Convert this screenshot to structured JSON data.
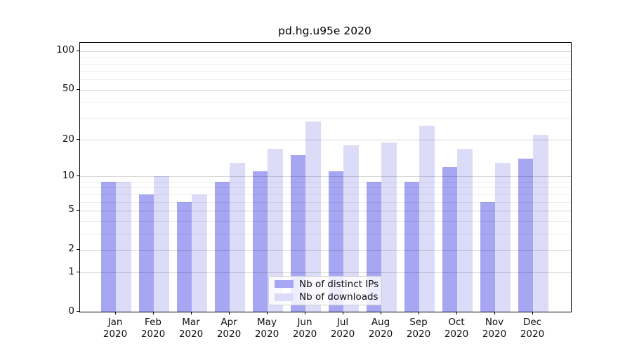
{
  "chart_data": {
    "type": "bar",
    "title": "pd.hg.u95e 2020",
    "categories": [
      "Jan",
      "Feb",
      "Mar",
      "Apr",
      "May",
      "Jun",
      "Jul",
      "Aug",
      "Sep",
      "Oct",
      "Nov",
      "Dec"
    ],
    "x_tick_second_line": "2020",
    "series": [
      {
        "name": "Nb of distinct IPs",
        "color": "#a6a6f3",
        "values": [
          9,
          7,
          6,
          9,
          11,
          15,
          11,
          9,
          9,
          12,
          6,
          14
        ]
      },
      {
        "name": "Nb of downloads",
        "color": "#dcdcf9",
        "values": [
          9,
          10,
          7,
          13,
          17,
          28,
          18,
          19,
          26,
          17,
          13,
          22
        ]
      }
    ],
    "yscale": "log10(1+x)",
    "ylim": [
      0,
      116
    ],
    "yticks": [
      0,
      1,
      2,
      5,
      10,
      20,
      50,
      100
    ],
    "minor_gridlines": [
      3,
      4,
      6,
      7,
      8,
      9,
      30,
      40,
      60,
      70,
      80,
      90,
      110
    ],
    "grid": true,
    "legend_position": "lower center",
    "background_color": "#ffffff",
    "spine_color": "#000000"
  }
}
